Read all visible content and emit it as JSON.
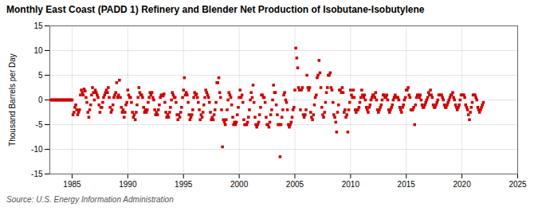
{
  "chart_data": {
    "type": "scatter",
    "title": "Monthly East Coast (PADD 1) Refinery and Blender Net Production of Isobutane-Isobutylene",
    "ylabel": "Thousand Barrels per Day",
    "source": "Source: U.S. Energy Information Administration",
    "color": "#cc0000",
    "marker": "square",
    "grid": true,
    "xlim": [
      1983,
      2025
    ],
    "ylim": [
      -15,
      15
    ],
    "xticks": [
      1985,
      1990,
      1995,
      2000,
      2005,
      2010,
      2015,
      2020,
      2025
    ],
    "yticks": [
      -15,
      -10,
      -5,
      0,
      5,
      10,
      15
    ],
    "x": [
      1983.08,
      1983.17,
      1983.25,
      1983.33,
      1983.42,
      1983.5,
      1983.58,
      1983.67,
      1983.75,
      1983.83,
      1983.92,
      1984,
      1984.08,
      1984.17,
      1984.25,
      1984.33,
      1984.42,
      1984.5,
      1984.58,
      1984.67,
      1984.75,
      1984.83,
      1984.92,
      1985,
      1985.08,
      1985.17,
      1985.25,
      1985.33,
      1985.42,
      1985.5,
      1985.58,
      1985.67,
      1985.75,
      1985.83,
      1985.92,
      1986,
      1986.08,
      1986.17,
      1986.25,
      1986.33,
      1986.42,
      1986.5,
      1986.58,
      1986.67,
      1986.75,
      1986.83,
      1986.92,
      1987,
      1987.08,
      1987.17,
      1987.25,
      1987.33,
      1987.42,
      1987.5,
      1987.58,
      1987.67,
      1987.75,
      1987.83,
      1987.92,
      1988,
      1988.08,
      1988.17,
      1988.25,
      1988.33,
      1988.42,
      1988.5,
      1988.58,
      1988.67,
      1988.75,
      1988.83,
      1988.92,
      1989,
      1989.08,
      1989.17,
      1989.25,
      1989.33,
      1989.42,
      1989.5,
      1989.58,
      1989.67,
      1989.75,
      1989.83,
      1989.92,
      1990,
      1990.08,
      1990.17,
      1990.25,
      1990.33,
      1990.42,
      1990.5,
      1990.58,
      1990.67,
      1990.75,
      1990.83,
      1990.92,
      1991,
      1991.08,
      1991.17,
      1991.25,
      1991.33,
      1991.42,
      1991.5,
      1991.58,
      1991.67,
      1991.75,
      1991.83,
      1991.92,
      1992,
      1992.08,
      1992.17,
      1992.25,
      1992.33,
      1992.42,
      1992.5,
      1992.58,
      1992.67,
      1992.75,
      1992.83,
      1992.92,
      1993,
      1993.08,
      1993.17,
      1993.25,
      1993.33,
      1993.42,
      1993.5,
      1993.58,
      1993.67,
      1993.75,
      1993.83,
      1993.92,
      1994,
      1994.08,
      1994.17,
      1994.25,
      1994.33,
      1994.42,
      1994.5,
      1994.58,
      1994.67,
      1994.75,
      1994.83,
      1994.92,
      1995,
      1995.08,
      1995.17,
      1995.25,
      1995.33,
      1995.42,
      1995.5,
      1995.58,
      1995.67,
      1995.75,
      1995.83,
      1995.92,
      1996,
      1996.08,
      1996.17,
      1996.25,
      1996.33,
      1996.42,
      1996.5,
      1996.58,
      1996.67,
      1996.75,
      1996.83,
      1996.92,
      1997,
      1997.08,
      1997.17,
      1997.25,
      1997.33,
      1997.42,
      1997.5,
      1997.58,
      1997.67,
      1997.75,
      1997.83,
      1997.92,
      1998,
      1998.08,
      1998.17,
      1998.25,
      1998.33,
      1998.42,
      1998.5,
      1998.58,
      1998.67,
      1998.75,
      1998.83,
      1998.92,
      1999,
      1999.08,
      1999.17,
      1999.25,
      1999.33,
      1999.42,
      1999.5,
      1999.58,
      1999.67,
      1999.75,
      1999.83,
      1999.92,
      2000,
      2000.08,
      2000.17,
      2000.25,
      2000.33,
      2000.42,
      2000.5,
      2000.58,
      2000.67,
      2000.75,
      2000.83,
      2000.92,
      2001,
      2001.08,
      2001.17,
      2001.25,
      2001.33,
      2001.42,
      2001.5,
      2001.58,
      2001.67,
      2001.75,
      2001.83,
      2001.92,
      2002,
      2002.08,
      2002.17,
      2002.25,
      2002.33,
      2002.42,
      2002.5,
      2002.58,
      2002.67,
      2002.75,
      2002.83,
      2002.92,
      2003,
      2003.08,
      2003.17,
      2003.25,
      2003.33,
      2003.42,
      2003.5,
      2003.58,
      2003.67,
      2003.75,
      2003.83,
      2003.92,
      2004,
      2004.08,
      2004.17,
      2004.25,
      2004.33,
      2004.42,
      2004.5,
      2004.58,
      2004.67,
      2004.75,
      2004.83,
      2004.92,
      2005,
      2005.08,
      2005.17,
      2005.25,
      2005.33,
      2005.42,
      2005.5,
      2005.58,
      2005.67,
      2005.75,
      2005.83,
      2005.92,
      2006,
      2006.08,
      2006.17,
      2006.25,
      2006.33,
      2006.42,
      2006.5,
      2006.58,
      2006.67,
      2006.75,
      2006.83,
      2006.92,
      2007,
      2007.08,
      2007.17,
      2007.25,
      2007.33,
      2007.42,
      2007.5,
      2007.58,
      2007.67,
      2007.75,
      2007.83,
      2007.92,
      2008,
      2008.08,
      2008.17,
      2008.25,
      2008.33,
      2008.42,
      2008.5,
      2008.58,
      2008.67,
      2008.75,
      2008.83,
      2008.92,
      2009,
      2009.08,
      2009.17,
      2009.25,
      2009.33,
      2009.42,
      2009.5,
      2009.58,
      2009.67,
      2009.75,
      2009.83,
      2009.92,
      2010,
      2010.08,
      2010.17,
      2010.25,
      2010.33,
      2010.42,
      2010.5,
      2010.58,
      2010.67,
      2010.75,
      2010.83,
      2010.92,
      2011,
      2011.08,
      2011.17,
      2011.25,
      2011.33,
      2011.42,
      2011.5,
      2011.58,
      2011.67,
      2011.75,
      2011.83,
      2011.92,
      2012,
      2012.08,
      2012.17,
      2012.25,
      2012.33,
      2012.42,
      2012.5,
      2012.58,
      2012.67,
      2012.75,
      2012.83,
      2012.92,
      2013,
      2013.08,
      2013.17,
      2013.25,
      2013.33,
      2013.42,
      2013.5,
      2013.58,
      2013.67,
      2013.75,
      2013.83,
      2013.92,
      2014,
      2014.08,
      2014.17,
      2014.25,
      2014.33,
      2014.42,
      2014.5,
      2014.58,
      2014.67,
      2014.75,
      2014.83,
      2014.92,
      2015,
      2015.08,
      2015.17,
      2015.25,
      2015.33,
      2015.42,
      2015.5,
      2015.58,
      2015.67,
      2015.75,
      2015.83,
      2015.92,
      2016,
      2016.08,
      2016.17,
      2016.25,
      2016.33,
      2016.42,
      2016.5,
      2016.58,
      2016.67,
      2016.75,
      2016.83,
      2016.92,
      2017,
      2017.08,
      2017.17,
      2017.25,
      2017.33,
      2017.42,
      2017.5,
      2017.58,
      2017.67,
      2017.75,
      2017.83,
      2017.92,
      2018,
      2018.08,
      2018.17,
      2018.25,
      2018.33,
      2018.42,
      2018.5,
      2018.58,
      2018.67,
      2018.75,
      2018.83,
      2018.92,
      2019,
      2019.08,
      2019.17,
      2019.25,
      2019.33,
      2019.42,
      2019.5,
      2019.58,
      2019.67,
      2019.75,
      2019.83,
      2019.92,
      2020,
      2020.08,
      2020.17,
      2020.25,
      2020.33,
      2020.42,
      2020.5,
      2020.58,
      2020.67,
      2020.75,
      2020.83,
      2020.92,
      2021,
      2021.08,
      2021.17,
      2021.25,
      2021.33,
      2021.42,
      2021.5,
      2021.58,
      2021.67,
      2021.75,
      2021.83,
      2021.92
    ],
    "values": [
      0,
      0,
      0,
      0,
      0,
      0,
      0,
      0,
      0,
      0,
      0,
      0,
      0,
      0,
      0,
      0,
      0,
      0,
      0,
      0,
      0,
      0,
      0,
      0,
      -3,
      -2.5,
      -1.5,
      -1,
      -2,
      -3,
      -2.5,
      -2,
      1,
      2,
      1.5,
      1,
      2.2,
      1.8,
      0.5,
      -0.5,
      -2.5,
      -3.5,
      -2,
      -1,
      1,
      2.5,
      1.5,
      0,
      2,
      1.5,
      1,
      0.5,
      -1,
      -2.5,
      -1.5,
      -1.5,
      -0.5,
      0.5,
      1,
      1.5,
      2,
      1.5,
      2.5,
      0.5,
      -1.5,
      -2.5,
      -2,
      -1,
      0.5,
      1,
      1.5,
      3.5,
      0.5,
      1,
      4,
      0.5,
      -1.5,
      -2.5,
      -2,
      -3.5,
      -2.5,
      -1,
      -0.5,
      2,
      1,
      0.5,
      0.5,
      -0.5,
      -2.5,
      -3.5,
      -3,
      -4,
      -2.5,
      -1,
      0.5,
      2.5,
      1.5,
      1,
      1,
      0.5,
      -1.5,
      -2.5,
      -2,
      -2.5,
      -2,
      -0.5,
      0.5,
      1.5,
      1,
      1.5,
      0.5,
      0,
      -2,
      -3,
      -2.5,
      -3,
      -2,
      -1,
      0.5,
      1,
      1,
      0.8,
      1.2,
      -0.5,
      -2.5,
      -3.5,
      -3,
      -3.5,
      -2.5,
      -1.5,
      0,
      1.5,
      1,
      0.5,
      0.5,
      -0.5,
      -3,
      -4,
      -3,
      -3.5,
      -2.5,
      -1.5,
      0.5,
      2,
      4.5,
      1,
      1.5,
      1,
      -0.5,
      -3,
      -4,
      -3.5,
      -3,
      -2,
      0.5,
      1.5,
      1,
      1.2,
      0.5,
      -0.5,
      -2,
      -4,
      -3,
      -3.5,
      -2.5,
      -1,
      0.5,
      2,
      1.5,
      1,
      0.5,
      -0.5,
      -2.5,
      -4,
      -3.5,
      -4,
      -3,
      -2,
      -0.5,
      3.5,
      3.5,
      4.5,
      1.5,
      0.5,
      -2,
      -9.5,
      -4,
      -4.5,
      -5,
      -4,
      -2,
      0,
      1.5,
      1,
      0.5,
      -1,
      -3.5,
      -5,
      -4.5,
      -5,
      -4.5,
      -3,
      -1.5,
      0.5,
      2,
      0.5,
      1,
      -0.5,
      -4,
      -5,
      -5,
      -5,
      -4.5,
      -3.5,
      -2,
      0,
      1.5,
      0.5,
      3,
      -0.5,
      -3.5,
      -5,
      -5.5,
      -5,
      -4.5,
      -3,
      -1.5,
      1,
      1,
      0.5,
      0.5,
      -0.5,
      -3.5,
      -5,
      -5,
      -5.5,
      -4.5,
      -3,
      -2,
      0,
      3,
      1.5,
      1.5,
      -1,
      -3,
      -5,
      -5,
      -11.5,
      -5,
      -3.5,
      -2,
      1,
      1.5,
      0,
      -0.5,
      -2,
      -5,
      -5.5,
      -5,
      -4.5,
      -3.5,
      -2,
      -1.5,
      2,
      10.5,
      8.5,
      6.5,
      2.5,
      2,
      -2,
      2,
      2.5,
      -3,
      -3.5,
      -3,
      -2,
      5,
      2.5,
      2,
      2.5,
      -2.5,
      -3.5,
      -4,
      -3,
      -1,
      0.5,
      1,
      4.5,
      5,
      8,
      5.5,
      2.5,
      -1.5,
      -3,
      -3.5,
      -2.5,
      -0.5,
      1.5,
      2.5,
      5,
      5,
      5.5,
      2.5,
      2,
      -0.5,
      -3,
      -3.5,
      -4.5,
      -6.5,
      -2.5,
      -1,
      2,
      2,
      1.5,
      2.5,
      1.5,
      -2.5,
      -2,
      -3.5,
      -3,
      -6.5,
      -2,
      -0.5,
      2,
      1,
      0.5,
      2,
      0.5,
      -2,
      -2.5,
      -2,
      -2,
      -1.5,
      -0.5,
      0.5,
      2,
      1,
      0.5,
      1,
      0,
      -1.5,
      -2,
      -2.5,
      -1.5,
      -1,
      0,
      0.5,
      1,
      1,
      0.5,
      1.5,
      0,
      -2,
      -2.5,
      -2,
      -1.5,
      -1,
      0,
      1,
      1,
      0.5,
      0.5,
      1,
      0,
      -2,
      -2.5,
      -2,
      -1.5,
      -1,
      0,
      0.5,
      1,
      0.5,
      0.5,
      0.5,
      0,
      -1.5,
      -2,
      -2.5,
      -1.5,
      -1,
      0,
      0.5,
      2,
      2,
      2.5,
      1,
      0.5,
      -2,
      -2,
      -2,
      -1.5,
      -5,
      -1,
      0.5,
      1,
      1,
      0.5,
      1,
      0,
      -1,
      -1.5,
      -1.5,
      -1,
      -0.5,
      0,
      0.5,
      1.5,
      1,
      2,
      1,
      0.5,
      -1,
      -1.5,
      -1.5,
      -1,
      -0.5,
      0,
      1,
      1,
      1,
      1,
      0.5,
      0,
      -1,
      -1.5,
      -1.5,
      -1,
      -0.5,
      0,
      0.5,
      1,
      1,
      1.5,
      0.5,
      0,
      -1,
      -1.5,
      -2,
      -1.5,
      -1,
      0,
      1,
      1,
      1,
      1,
      0.5,
      -1,
      -1.5,
      -2,
      -3,
      -4,
      -2.5,
      -1.5,
      -0.5,
      1,
      1,
      1,
      0.5,
      0,
      -1.5,
      -2,
      -2.5,
      -2,
      -1.5,
      -1,
      -0.5
    ]
  }
}
